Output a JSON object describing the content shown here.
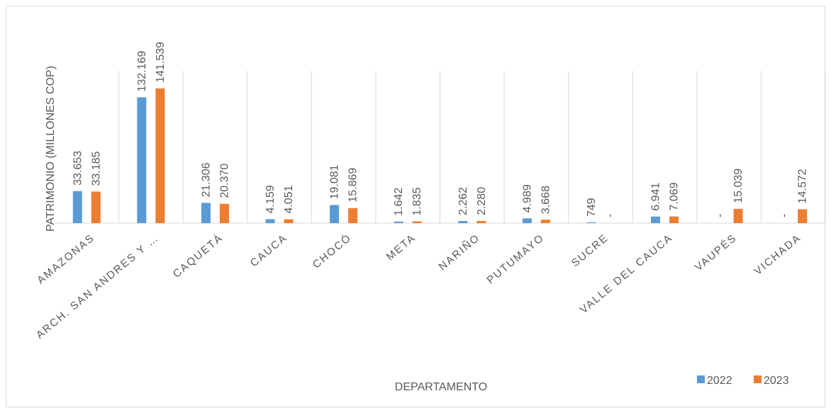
{
  "chart_data": {
    "type": "bar",
    "y_label": "PATRIMONIO  (MILLONES COP)",
    "x_label": "DEPARTAMENTO",
    "categories": [
      "AMAZONAS",
      "ARCH. SAN ANDRES Y …",
      "CAQUETÁ",
      "CAUCA",
      "CHOCÓ",
      "META",
      "NARIÑO",
      "PUTUMAYO",
      "SUCRE",
      "VALLE DEL CAUCA",
      "VAUPÉS",
      "VICHADA"
    ],
    "series": [
      {
        "name": "2022",
        "color": "#5b9bd5",
        "values": [
          33653,
          132169,
          21306,
          4159,
          19081,
          1642,
          2262,
          4989,
          749,
          6941,
          0,
          0
        ],
        "value_labels": [
          "33.653",
          "132.169",
          "21.306",
          "4.159",
          "19.081",
          "1.642",
          "2.262",
          "4.989",
          "749",
          "6.941",
          "-",
          "-"
        ]
      },
      {
        "name": "2023",
        "color": "#ed7d31",
        "values": [
          33185,
          141539,
          20370,
          4051,
          15869,
          1835,
          2280,
          3668,
          0,
          7069,
          15039,
          14572
        ],
        "value_labels": [
          "33.185",
          "141.539",
          "20.370",
          "4.051",
          "15.869",
          "1.835",
          "2.280",
          "3.668",
          "-",
          "7.069",
          "15.039",
          "14.572"
        ]
      }
    ],
    "ylim": [
      0,
      160000
    ],
    "grid": true,
    "legend": "bottom-right"
  }
}
